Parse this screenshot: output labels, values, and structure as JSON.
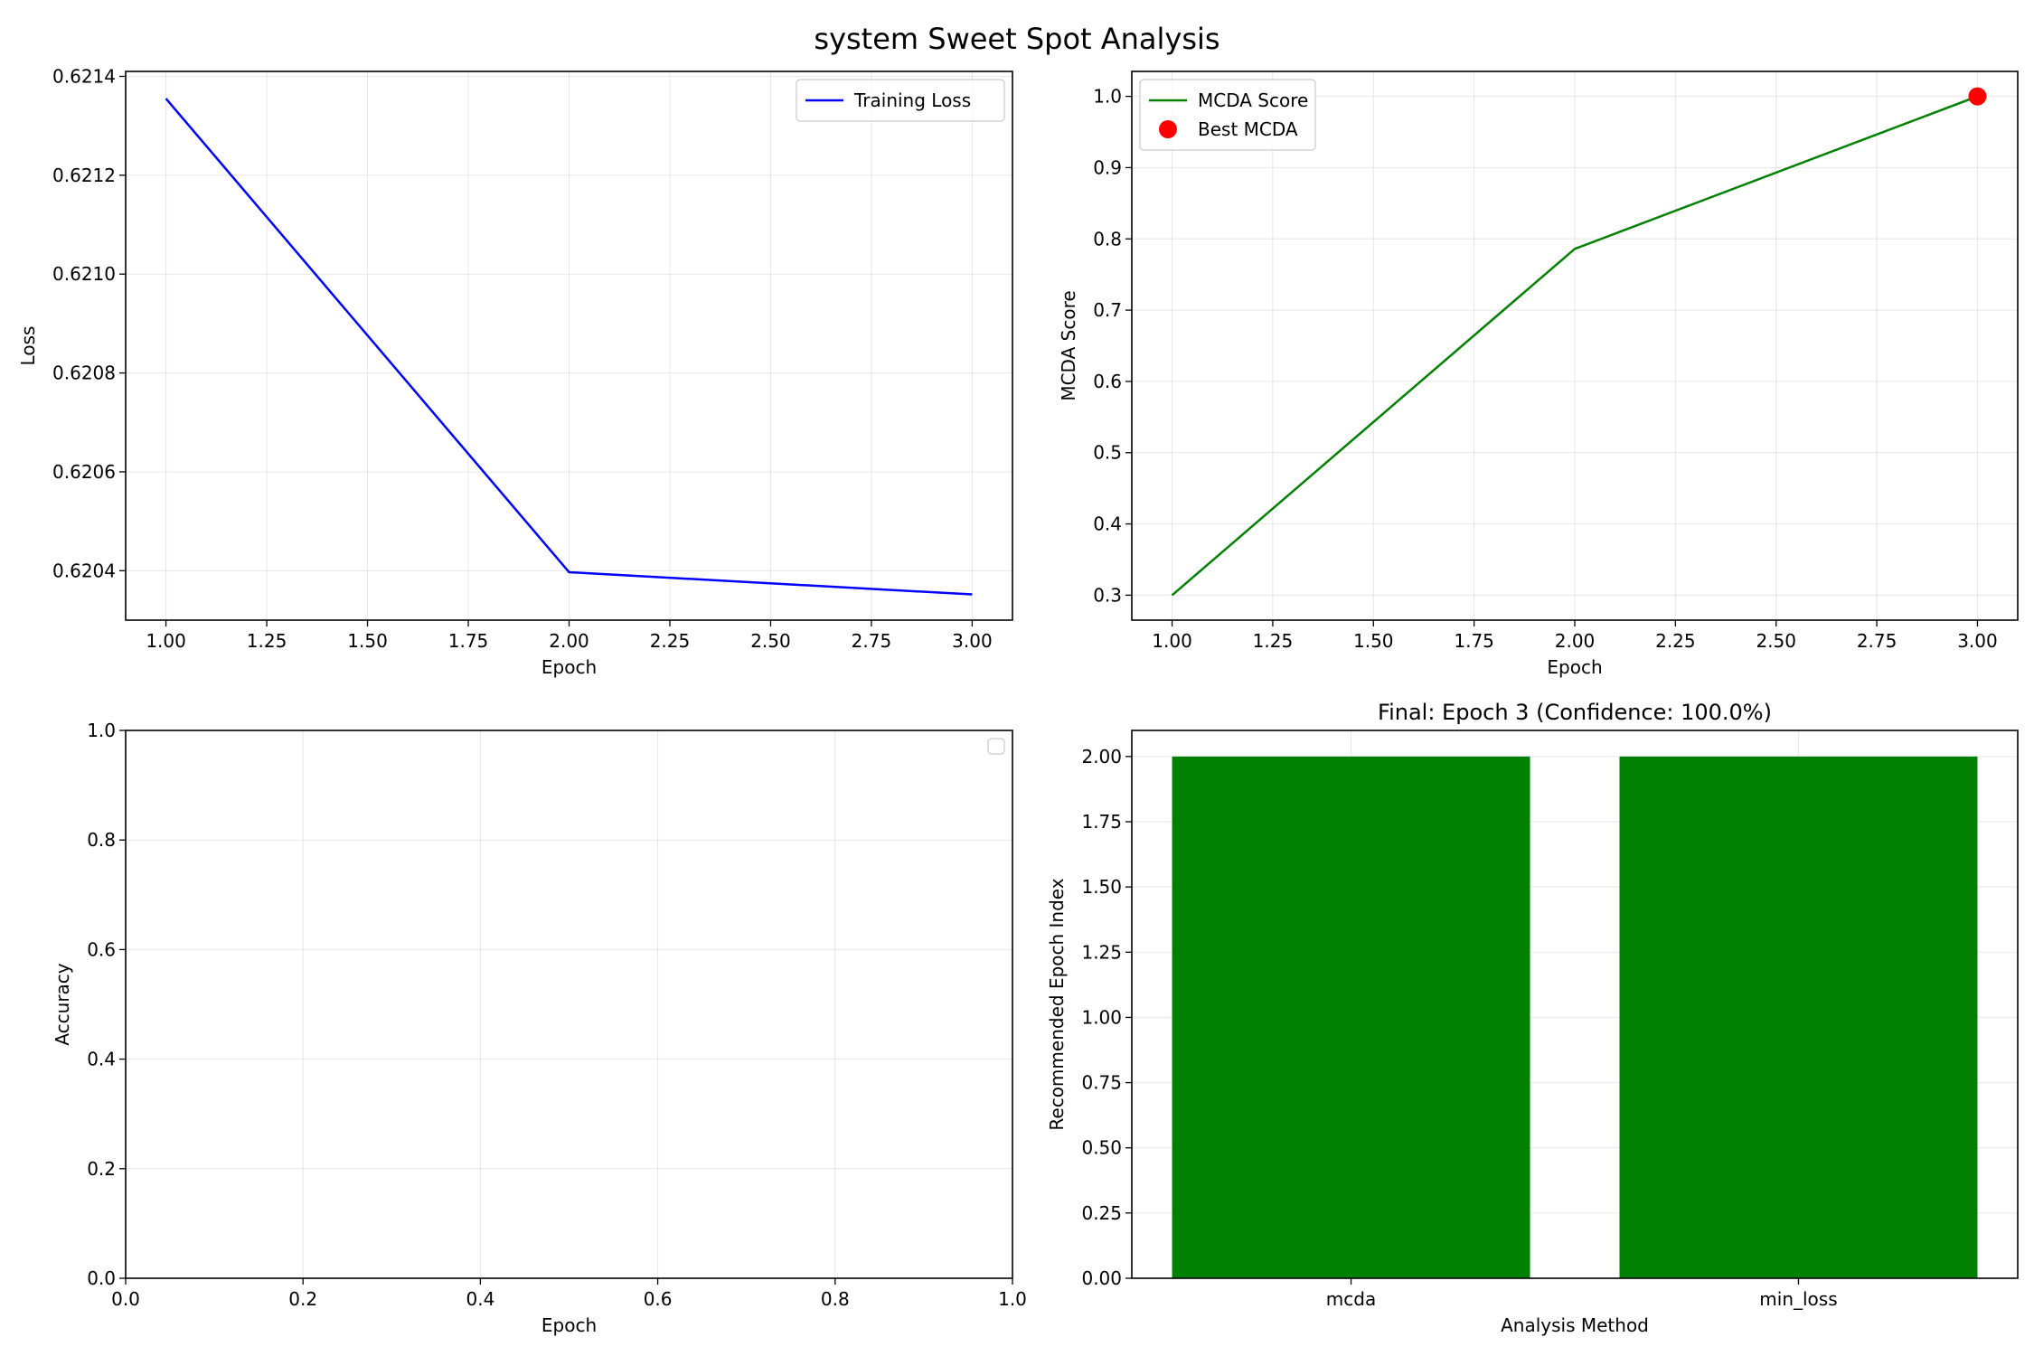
{
  "figure": {
    "title": "system Sweet Spot Analysis"
  },
  "chart_data": [
    {
      "type": "line",
      "title": "",
      "xlabel": "Epoch",
      "ylabel": "Loss",
      "xlim": [
        0.9,
        3.1
      ],
      "ylim": [
        0.6203,
        0.62141
      ],
      "xticks": [
        1.0,
        1.25,
        1.5,
        1.75,
        2.0,
        2.25,
        2.5,
        2.75,
        3.0
      ],
      "xtick_labels": [
        "1.00",
        "1.25",
        "1.50",
        "1.75",
        "2.00",
        "2.25",
        "2.50",
        "2.75",
        "3.00"
      ],
      "yticks": [
        0.6204,
        0.6206,
        0.6208,
        0.621,
        0.6212,
        0.6214
      ],
      "ytick_labels": [
        "0.6204",
        "0.6206",
        "0.6208",
        "0.6210",
        "0.6212",
        "0.6214"
      ],
      "grid": true,
      "legend": "top-right",
      "series": [
        {
          "name": "Training Loss",
          "kind": "line",
          "color": "#0000ff",
          "x": [
            1,
            2,
            3
          ],
          "y": [
            0.621355,
            0.620397,
            0.620352
          ]
        }
      ]
    },
    {
      "type": "line",
      "title": "",
      "xlabel": "Epoch",
      "ylabel": "MCDA Score",
      "xlim": [
        0.9,
        3.1
      ],
      "ylim": [
        0.265,
        1.035
      ],
      "xticks": [
        1.0,
        1.25,
        1.5,
        1.75,
        2.0,
        2.25,
        2.5,
        2.75,
        3.0
      ],
      "xtick_labels": [
        "1.00",
        "1.25",
        "1.50",
        "1.75",
        "2.00",
        "2.25",
        "2.50",
        "2.75",
        "3.00"
      ],
      "yticks": [
        0.3,
        0.4,
        0.5,
        0.6,
        0.7,
        0.8,
        0.9,
        1.0
      ],
      "ytick_labels": [
        "0.3",
        "0.4",
        "0.5",
        "0.6",
        "0.7",
        "0.8",
        "0.9",
        "1.0"
      ],
      "grid": true,
      "legend": "top-left",
      "series": [
        {
          "name": "MCDA Score",
          "kind": "line",
          "color": "#008000",
          "x": [
            1,
            2,
            3
          ],
          "y": [
            0.3,
            0.786,
            1.0
          ]
        },
        {
          "name": "Best MCDA",
          "kind": "scatter",
          "color": "#ff0000",
          "x": [
            3
          ],
          "y": [
            1.0
          ]
        }
      ]
    },
    {
      "type": "line",
      "title": "",
      "xlabel": "Epoch",
      "ylabel": "Accuracy",
      "xlim": [
        0.0,
        1.0
      ],
      "ylim": [
        0.0,
        1.0
      ],
      "xticks": [
        0.0,
        0.2,
        0.4,
        0.6,
        0.8,
        1.0
      ],
      "xtick_labels": [
        "0.0",
        "0.2",
        "0.4",
        "0.6",
        "0.8",
        "1.0"
      ],
      "yticks": [
        0.0,
        0.2,
        0.4,
        0.6,
        0.8,
        1.0
      ],
      "ytick_labels": [
        "0.0",
        "0.2",
        "0.4",
        "0.6",
        "0.8",
        "1.0"
      ],
      "grid": true,
      "legend": "top-right",
      "series": []
    },
    {
      "type": "bar",
      "title": "Final: Epoch 3 (Confidence: 100.0%)",
      "xlabel": "Analysis Method",
      "ylabel": "Recommended Epoch Index",
      "categories": [
        "mcda",
        "min_loss"
      ],
      "values": [
        2,
        2
      ],
      "color": "#008000",
      "ylim": [
        0,
        2.1
      ],
      "yticks": [
        0.0,
        0.25,
        0.5,
        0.75,
        1.0,
        1.25,
        1.5,
        1.75,
        2.0
      ],
      "ytick_labels": [
        "0.00",
        "0.25",
        "0.50",
        "0.75",
        "1.00",
        "1.25",
        "1.50",
        "1.75",
        "2.00"
      ],
      "grid": true
    }
  ]
}
